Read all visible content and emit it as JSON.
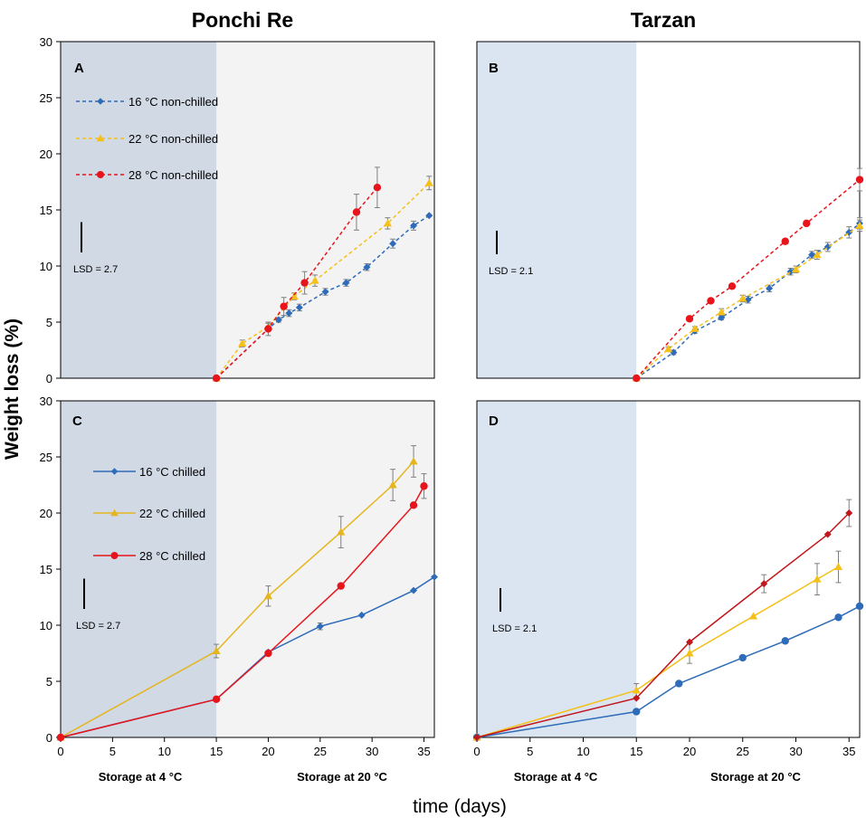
{
  "figure": {
    "column_titles": [
      "Ponchi Re",
      "Tarzan"
    ],
    "ylabel": "Weight loss (%)",
    "xlabel": "time (days)",
    "storage_labels": [
      "Storage  at 4 °C",
      "Storage at 20 °C"
    ],
    "storage_labels_right": [
      "Storage at 4 °C",
      "Storage at 20 °C"
    ]
  },
  "colors": {
    "blue": "#2E6BB8",
    "yellow": "#F5C01A",
    "red": "#E8141C",
    "darkred": "#C0161C",
    "gold": "#E6B51E",
    "shade_left": "#D0D9E4",
    "shade_right": "#DAE5F1",
    "plot_bg_left": "#F3F3F3",
    "plot_bg_right": "#FFFFFF"
  },
  "chart_data": [
    {
      "panel": "A",
      "type": "line",
      "title": "Ponchi Re",
      "xlabel": "",
      "ylabel": "Weight loss (%)",
      "xlim": [
        0,
        36
      ],
      "ylim": [
        0,
        30
      ],
      "xticks": [],
      "yticks": [
        "0",
        "5",
        "10",
        "15",
        "20",
        "25",
        "30"
      ],
      "shaded_range": [
        0,
        15
      ],
      "lsd": "LSD = 2.7",
      "lsd_value": 2.7,
      "series": [
        {
          "name": "16 °C non-chilled",
          "marker": "diamond",
          "dashed": true,
          "color": "#2E6BB8",
          "x": [
            15,
            20,
            21,
            22,
            23,
            25.5,
            27.5,
            29.5,
            32,
            34,
            35.5
          ],
          "y": [
            0,
            4.4,
            5.2,
            5.8,
            6.3,
            7.7,
            8.5,
            9.9,
            12.0,
            13.6,
            14.5
          ],
          "err": [
            0,
            0,
            0.2,
            0.3,
            0.3,
            0.3,
            0.3,
            0.3,
            0.4,
            0.4,
            0
          ]
        },
        {
          "name": "22 °C non-chilled",
          "marker": "triangle",
          "dashed": true,
          "color": "#F5C01A",
          "x": [
            15,
            17.5,
            20,
            22.5,
            24.5,
            31.5,
            35.5
          ],
          "y": [
            0,
            3.1,
            4.6,
            7.3,
            8.7,
            13.8,
            17.4
          ],
          "err": [
            0,
            0.3,
            0.3,
            0.3,
            0.5,
            0.5,
            0.6
          ]
        },
        {
          "name": "28 °C non-chilled",
          "marker": "circle",
          "dashed": true,
          "color": "#E8141C",
          "x": [
            15,
            20,
            21.5,
            23.5,
            28.5,
            30.5
          ],
          "y": [
            0,
            4.4,
            6.4,
            8.5,
            14.8,
            17.0
          ],
          "err": [
            0,
            0.6,
            0.8,
            1.0,
            1.6,
            1.8
          ]
        }
      ]
    },
    {
      "panel": "B",
      "type": "line",
      "title": "Tarzan",
      "xlabel": "",
      "ylabel": "",
      "xlim": [
        0,
        36
      ],
      "ylim": [
        0,
        30
      ],
      "xticks": [],
      "yticks": [],
      "shaded_range": [
        0,
        15
      ],
      "lsd": "LSD = 2.1",
      "lsd_value": 2.1,
      "series": [
        {
          "name": "16 °C",
          "marker": "diamond",
          "dashed": true,
          "color": "#2E6BB8",
          "x": [
            15,
            18.5,
            20.5,
            23,
            25.5,
            27.5,
            29.5,
            31.5,
            33,
            35,
            36
          ],
          "y": [
            0,
            2.3,
            4.2,
            5.4,
            7.0,
            8.0,
            9.5,
            11.0,
            11.7,
            13.0,
            13.8
          ],
          "err": [
            0,
            0.2,
            0.2,
            0.2,
            0.3,
            0.3,
            0.3,
            0.3,
            0.4,
            0.5,
            0.5
          ]
        },
        {
          "name": "22 °C",
          "marker": "triangle",
          "dashed": true,
          "color": "#F5C01A",
          "x": [
            15,
            18,
            20.5,
            23,
            25,
            30,
            32,
            36
          ],
          "y": [
            0,
            2.6,
            4.4,
            5.9,
            7.1,
            9.7,
            11.0,
            13.6
          ],
          "err": [
            0,
            0.2,
            0.2,
            0.3,
            0.3,
            0.3,
            0.4,
            0.5
          ]
        },
        {
          "name": "28 °C",
          "marker": "circle",
          "dashed": true,
          "color": "#E8141C",
          "x": [
            15,
            20,
            22,
            24,
            29,
            31,
            36
          ],
          "y": [
            0,
            5.3,
            6.9,
            8.2,
            12.2,
            13.8,
            17.7
          ],
          "err": [
            0,
            0,
            0,
            0,
            0,
            0,
            1.0
          ]
        }
      ]
    },
    {
      "panel": "C",
      "type": "line",
      "title": "",
      "xlabel": "time (days)",
      "ylabel": "Weight loss (%)",
      "xlim": [
        0,
        36
      ],
      "ylim": [
        0,
        30
      ],
      "xticks": [
        "0",
        "5",
        "10",
        "15",
        "20",
        "25",
        "30",
        "35"
      ],
      "yticks": [
        "0",
        "5",
        "10",
        "15",
        "20",
        "25",
        "30"
      ],
      "shaded_range": [
        0,
        15
      ],
      "lsd": "LSD = 2.7",
      "lsd_value": 2.7,
      "series": [
        {
          "name": "16 °C chilled",
          "marker": "diamond",
          "dashed": false,
          "color": "#2E6BB8",
          "x": [
            0,
            15,
            20,
            25,
            29,
            34,
            36
          ],
          "y": [
            0,
            3.4,
            7.6,
            9.9,
            10.9,
            13.1,
            14.3
          ],
          "err": [
            0,
            0,
            0,
            0.3,
            0,
            0,
            0
          ]
        },
        {
          "name": "22 °C chilled",
          "marker": "triangle",
          "dashed": false,
          "color": "#E6B51E",
          "x": [
            0,
            15,
            20,
            27,
            32,
            34
          ],
          "y": [
            0,
            7.7,
            12.6,
            18.3,
            22.5,
            24.6
          ],
          "err": [
            0,
            0.6,
            0.9,
            1.4,
            1.4,
            1.4
          ]
        },
        {
          "name": "28 °C chilled",
          "marker": "circle",
          "dashed": false,
          "color": "#E8141C",
          "x": [
            0,
            15,
            20,
            27,
            34,
            35
          ],
          "y": [
            0,
            3.4,
            7.5,
            13.5,
            20.7,
            22.4
          ],
          "err": [
            0,
            0,
            0,
            0,
            0,
            1.1
          ]
        }
      ]
    },
    {
      "panel": "D",
      "type": "line",
      "title": "",
      "xlabel": "time (days)",
      "ylabel": "",
      "xlim": [
        0,
        36
      ],
      "ylim": [
        0,
        30
      ],
      "xticks": [
        "0",
        "5",
        "10",
        "15",
        "20",
        "25",
        "30",
        "35"
      ],
      "yticks": [],
      "shaded_range": [
        0,
        15
      ],
      "lsd": "LSD = 2.1",
      "lsd_value": 2.1,
      "series": [
        {
          "name": "16 °C",
          "marker": "circle",
          "dashed": false,
          "color": "#2E6BB8",
          "x": [
            0,
            15,
            19,
            25,
            29,
            34,
            36
          ],
          "y": [
            0,
            2.3,
            4.8,
            7.1,
            8.6,
            10.7,
            11.7
          ],
          "err": [
            0,
            0,
            0,
            0,
            0,
            0,
            0
          ]
        },
        {
          "name": "22 °C",
          "marker": "triangle",
          "dashed": false,
          "color": "#F5C01A",
          "x": [
            0,
            15,
            20,
            26,
            32,
            34
          ],
          "y": [
            0,
            4.2,
            7.5,
            10.8,
            14.1,
            15.2
          ],
          "err": [
            0,
            0.6,
            0.9,
            0,
            1.4,
            1.4
          ]
        },
        {
          "name": "28 °C",
          "marker": "diamond",
          "dashed": false,
          "color": "#C0161C",
          "x": [
            0,
            15,
            20,
            27,
            33,
            35
          ],
          "y": [
            0,
            3.5,
            8.5,
            13.7,
            18.1,
            20.0
          ],
          "err": [
            0,
            0,
            0,
            0.8,
            0,
            1.2
          ]
        }
      ]
    }
  ]
}
